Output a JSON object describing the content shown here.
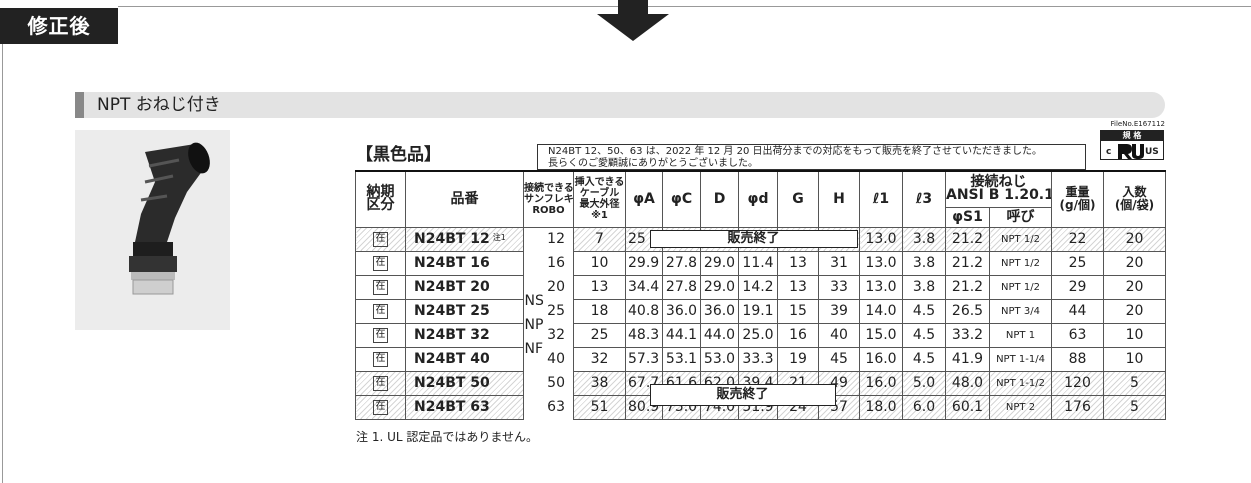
{
  "badge": "修正後",
  "section_title": "NPT おねじ付き",
  "table_label": "【黒色品】",
  "notice": [
    "N24BT 12、50、63 は、2022 年 12 月 20 日出荷分までの対応をもって販売を終了させていただきました。",
    "長らくのご愛顧誠にありがとうございました。"
  ],
  "file_no": "FileNo.E167112",
  "cert": {
    "label": "規 格",
    "prefix": "c",
    "suffix": "US"
  },
  "table": {
    "headers": {
      "delivery": [
        "納期",
        "区分"
      ],
      "part": [
        "品番"
      ],
      "robo": [
        "接続できる",
        "サンフレキ",
        "ROBO"
      ],
      "cable": [
        "挿入できる",
        "ケーブル",
        "最大外径",
        "※1"
      ],
      "A": [
        "φA"
      ],
      "C": [
        "φC"
      ],
      "D": [
        "D"
      ],
      "d": [
        "φd"
      ],
      "G": [
        "G"
      ],
      "H": [
        "H"
      ],
      "l1": [
        "ℓ1"
      ],
      "l3": [
        "ℓ3"
      ],
      "thread": [
        "接続ねじ",
        "ANSI B 1.20.1"
      ],
      "S1": [
        "φS1"
      ],
      "call": [
        "呼び"
      ],
      "weight": [
        "重量",
        "(g/個)"
      ],
      "qty": [
        "入数",
        "(個/袋)"
      ]
    },
    "robo_types": [
      "NS",
      "NP",
      "NF"
    ],
    "discontinued_label": "販売終了",
    "rows": [
      {
        "discontinued": true,
        "delivery": "在",
        "part": "N24BT 12",
        "note": "注1",
        "robo": "12",
        "cable": "7",
        "A": "25",
        "l1": "13.0",
        "l3": "3.8",
        "S1": "21.2",
        "call": "NPT 1/2",
        "weight": "22",
        "qty": "20"
      },
      {
        "discontinued": false,
        "delivery": "在",
        "part": "N24BT 16",
        "robo": "16",
        "cable": "10",
        "A": "29.9",
        "C": "27.8",
        "D": "29.0",
        "d": "11.4",
        "G": "13",
        "H": "31",
        "l1": "13.0",
        "l3": "3.8",
        "S1": "21.2",
        "call": "NPT 1/2",
        "weight": "25",
        "qty": "20"
      },
      {
        "discontinued": false,
        "delivery": "在",
        "part": "N24BT 20",
        "robo": "20",
        "cable": "13",
        "A": "34.4",
        "C": "27.8",
        "D": "29.0",
        "d": "14.2",
        "G": "13",
        "H": "33",
        "l1": "13.0",
        "l3": "3.8",
        "S1": "21.2",
        "call": "NPT 1/2",
        "weight": "29",
        "qty": "20"
      },
      {
        "discontinued": false,
        "delivery": "在",
        "part": "N24BT 25",
        "robo": "25",
        "cable": "18",
        "A": "40.8",
        "C": "36.0",
        "D": "36.0",
        "d": "19.1",
        "G": "15",
        "H": "39",
        "l1": "14.0",
        "l3": "4.5",
        "S1": "26.5",
        "call": "NPT 3/4",
        "weight": "44",
        "qty": "20"
      },
      {
        "discontinued": false,
        "delivery": "在",
        "part": "N24BT 32",
        "robo": "32",
        "cable": "25",
        "A": "48.3",
        "C": "44.1",
        "D": "44.0",
        "d": "25.0",
        "G": "16",
        "H": "40",
        "l1": "15.0",
        "l3": "4.5",
        "S1": "33.2",
        "call": "NPT 1",
        "weight": "63",
        "qty": "10"
      },
      {
        "discontinued": false,
        "delivery": "在",
        "part": "N24BT 40",
        "robo": "40",
        "cable": "32",
        "A": "57.3",
        "C": "53.1",
        "D": "53.0",
        "d": "33.3",
        "G": "19",
        "H": "45",
        "l1": "16.0",
        "l3": "4.5",
        "S1": "41.9",
        "call": "NPT 1-1/4",
        "weight": "88",
        "qty": "10"
      },
      {
        "discontinued": true,
        "delivery": "在",
        "part": "N24BT 50",
        "robo": "50",
        "cable": "38",
        "A": "67.7",
        "C": "61.6",
        "D": "62.0",
        "d": "39.4",
        "G": "21",
        "H": "49",
        "l1": "16.0",
        "l3": "5.0",
        "S1": "48.0",
        "call": "NPT 1-1/2",
        "weight": "120",
        "qty": "5"
      },
      {
        "discontinued": true,
        "delivery": "在",
        "part": "N24BT 63",
        "robo": "63",
        "cable": "51",
        "A": "80.9",
        "C": "75.0",
        "D": "74.0",
        "d": "51.9",
        "G": "24",
        "H": "57",
        "l1": "18.0",
        "l3": "6.0",
        "S1": "60.1",
        "call": "NPT 2",
        "weight": "176",
        "qty": "5"
      }
    ]
  },
  "footnote": "注 1. UL 認定品ではありません。"
}
